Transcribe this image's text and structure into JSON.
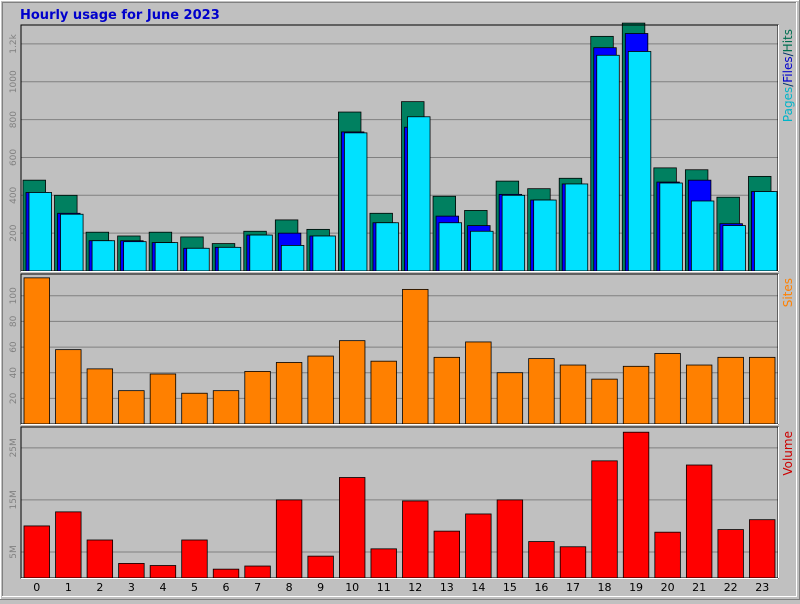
{
  "chart_data": {
    "type": "bar",
    "title": "Hourly usage for June 2023",
    "categories": [
      "0",
      "1",
      "2",
      "3",
      "4",
      "5",
      "6",
      "7",
      "8",
      "9",
      "10",
      "11",
      "12",
      "13",
      "14",
      "15",
      "16",
      "17",
      "18",
      "19",
      "20",
      "21",
      "22",
      "23"
    ],
    "panels": [
      {
        "name": "requests",
        "axis_labels": [
          {
            "text": "Pages",
            "color": "#00b4c8"
          },
          {
            "text": "/",
            "color": "#003366"
          },
          {
            "text": "Files",
            "color": "#0000cc"
          },
          {
            "text": "/",
            "color": "#003366"
          },
          {
            "text": "Hits",
            "color": "#006e50"
          }
        ],
        "ylim": [
          0,
          1300
        ],
        "y_ticks": [
          {
            "value": 200,
            "label": "200"
          },
          {
            "value": 400,
            "label": "400"
          },
          {
            "value": 600,
            "label": "600"
          },
          {
            "value": 800,
            "label": "800"
          },
          {
            "value": 1000,
            "label": "1000"
          },
          {
            "value": 1200,
            "label": "1.2k"
          }
        ],
        "series": [
          {
            "name": "Hits",
            "color": "#008060",
            "values": [
              480,
              400,
              205,
              185,
              205,
              180,
              145,
              210,
              270,
              220,
              840,
              305,
              895,
              395,
              320,
              475,
              435,
              490,
              1240,
              1310,
              545,
              535,
              390,
              500
            ]
          },
          {
            "name": "Files",
            "color": "#0000ff",
            "values": [
              415,
              305,
              160,
              160,
              150,
              120,
              125,
              190,
              200,
              185,
              735,
              255,
              760,
              290,
              240,
              405,
              375,
              460,
              1180,
              1255,
              470,
              480,
              250,
              420
            ]
          },
          {
            "name": "Pages",
            "color": "#00e1ff",
            "values": [
              415,
              300,
              160,
              155,
              150,
              120,
              125,
              190,
              135,
              185,
              730,
              255,
              815,
              255,
              210,
              400,
              375,
              460,
              1140,
              1160,
              465,
              370,
              240,
              420
            ]
          }
        ]
      },
      {
        "name": "sites",
        "axis_labels": [
          {
            "text": "Sites",
            "color": "#ff8000"
          }
        ],
        "ylim": [
          0,
          117
        ],
        "y_ticks": [
          {
            "value": 20,
            "label": "20"
          },
          {
            "value": 40,
            "label": "40"
          },
          {
            "value": 60,
            "label": "60"
          },
          {
            "value": 80,
            "label": "80"
          },
          {
            "value": 100,
            "label": "100"
          }
        ],
        "series": [
          {
            "name": "Sites",
            "color": "#ff8000",
            "values": [
              114,
              58,
              43,
              26,
              39,
              24,
              26,
              41,
              48,
              53,
              65,
              49,
              105,
              52,
              64,
              40,
              51,
              46,
              35,
              45,
              55,
              46,
              52,
              52
            ]
          }
        ]
      },
      {
        "name": "volume",
        "axis_labels": [
          {
            "text": "Volume",
            "color": "#cc0000"
          }
        ],
        "ylim": [
          0,
          2.9
        ],
        "y_ticks": [
          {
            "value": 0.5,
            "label": "5M"
          },
          {
            "value": 1.5,
            "label": "15M"
          },
          {
            "value": 2.5,
            "label": "25M"
          }
        ],
        "series": [
          {
            "name": "Volume",
            "color": "#ff0000",
            "values": [
              1.0,
              1.27,
              0.73,
              0.28,
              0.24,
              0.73,
              0.17,
              0.23,
              1.5,
              0.42,
              1.93,
              0.56,
              1.48,
              0.9,
              1.23,
              1.5,
              0.7,
              0.6,
              2.25,
              2.8,
              0.88,
              2.17,
              0.93,
              1.12
            ]
          }
        ]
      }
    ],
    "grid": true
  }
}
